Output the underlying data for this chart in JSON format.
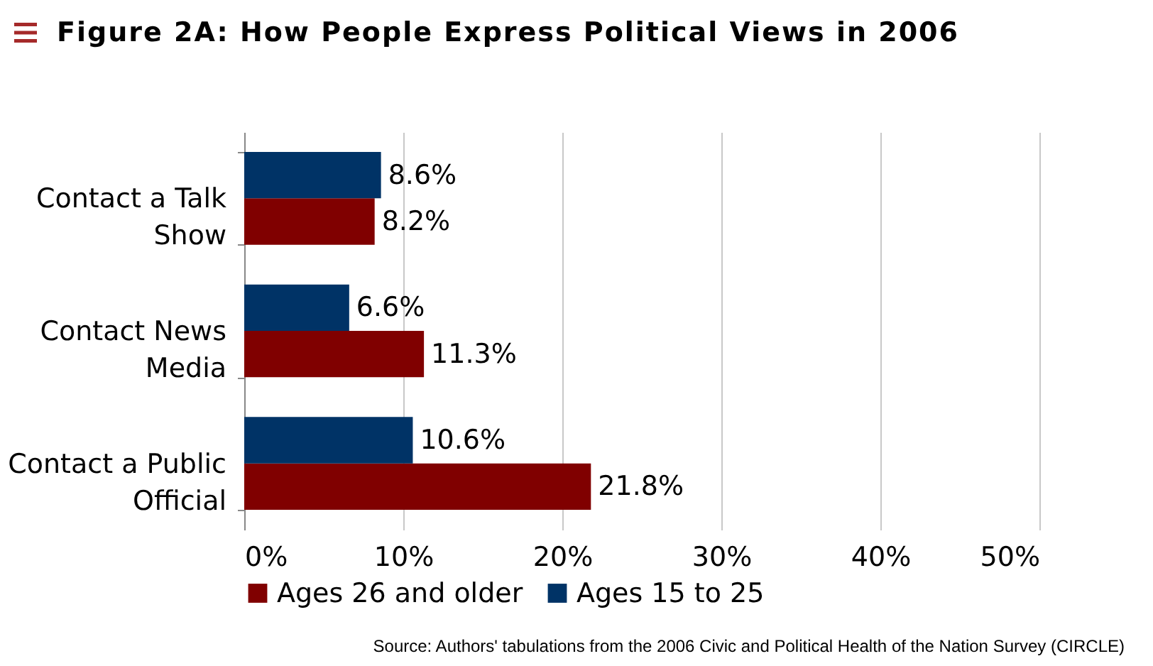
{
  "chart_data": {
    "type": "bar",
    "orientation": "horizontal",
    "title": "Figure 2A: How People Express Political Views in 2006",
    "categories": [
      "Contact a Talk Show",
      "Contact News Media",
      "Contact a Public Official"
    ],
    "series": [
      {
        "name": "Ages 26 and older",
        "color": "#800000",
        "values": [
          8.2,
          11.3,
          21.8
        ],
        "value_labels": [
          "8.2%",
          "11.3%",
          "21.8%"
        ]
      },
      {
        "name": "Ages 15 to 25",
        "color": "#003366",
        "values": [
          8.6,
          6.6,
          10.6
        ],
        "value_labels": [
          "8.6%",
          "6.6%",
          "10.6%"
        ]
      }
    ],
    "xlim": [
      0,
      50
    ],
    "xticks": [
      {
        "value": 0,
        "label": "0%"
      },
      {
        "value": 10,
        "label": "10%"
      },
      {
        "value": 20,
        "label": "20%"
      },
      {
        "value": 30,
        "label": "30%"
      },
      {
        "value": 40,
        "label": "40%"
      },
      {
        "value": 50,
        "label": "50%"
      }
    ],
    "grid": "x",
    "legend": "bottom",
    "annotations": [
      "Source: Authors' tabulations from the 2006 Civic and Political Health of the Nation Survey (CIRCLE)"
    ]
  }
}
